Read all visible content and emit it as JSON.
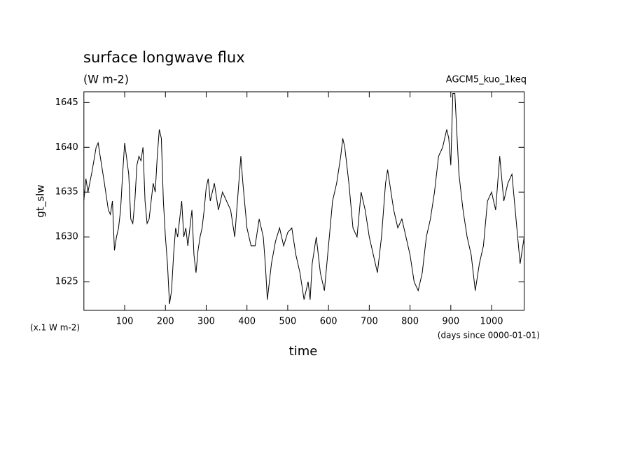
{
  "chart_data": {
    "type": "line",
    "title": "surface longwave flux",
    "subtitle": "(W m-2)",
    "annotation": "AGCM5_kuo_1keq",
    "y_label": "gt_slw",
    "y_unit": "(x.1 W m-2)",
    "x_unit": "(days since 0000-01-01)",
    "x_label": "time",
    "color": "#000000",
    "xlim": [
      0,
      1080
    ],
    "ylim": [
      1621.8,
      1646.2
    ],
    "xticks": [
      100,
      200,
      300,
      400,
      500,
      600,
      700,
      800,
      900,
      1000
    ],
    "yticks": [
      1625,
      1630,
      1635,
      1640,
      1645
    ],
    "x": [
      0,
      5,
      10,
      20,
      30,
      35,
      40,
      50,
      60,
      65,
      70,
      75,
      80,
      85,
      90,
      95,
      100,
      110,
      115,
      120,
      125,
      130,
      135,
      140,
      145,
      150,
      155,
      160,
      165,
      170,
      175,
      180,
      185,
      190,
      195,
      200,
      205,
      210,
      215,
      220,
      225,
      230,
      235,
      240,
      245,
      250,
      255,
      260,
      265,
      270,
      275,
      280,
      285,
      290,
      295,
      300,
      305,
      310,
      320,
      330,
      340,
      350,
      360,
      370,
      380,
      385,
      390,
      400,
      410,
      420,
      430,
      440,
      445,
      450,
      460,
      470,
      480,
      490,
      500,
      510,
      520,
      530,
      540,
      550,
      555,
      560,
      570,
      580,
      590,
      600,
      610,
      620,
      630,
      635,
      640,
      650,
      660,
      670,
      680,
      690,
      700,
      710,
      720,
      730,
      740,
      745,
      750,
      760,
      770,
      780,
      790,
      800,
      810,
      820,
      830,
      840,
      850,
      860,
      870,
      880,
      890,
      895,
      900,
      905,
      910,
      920,
      930,
      940,
      950,
      960,
      970,
      980,
      990,
      1000,
      1010,
      1020,
      1030,
      1040,
      1050,
      1060,
      1070,
      1080
    ],
    "values": [
      1634.1,
      1636.5,
      1635,
      1637.3,
      1640,
      1640.5,
      1639,
      1636.1,
      1633,
      1632.5,
      1634,
      1628.5,
      1630,
      1631,
      1633,
      1637,
      1640.5,
      1637,
      1632,
      1631.5,
      1634,
      1638,
      1639,
      1638.5,
      1640,
      1634,
      1631.5,
      1632,
      1634,
      1636,
      1635,
      1639,
      1642,
      1641,
      1634,
      1630,
      1627,
      1622.5,
      1624,
      1628,
      1631,
      1630,
      1632,
      1634,
      1630,
      1631,
      1629,
      1631,
      1633,
      1628,
      1626,
      1628.5,
      1630,
      1631,
      1633,
      1635.5,
      1636.5,
      1634,
      1636,
      1633,
      1635,
      1634,
      1633,
      1630,
      1636,
      1639,
      1636,
      1631,
      1629,
      1629,
      1632,
      1630,
      1627,
      1623,
      1627,
      1629.5,
      1631,
      1629,
      1630.5,
      1631,
      1628,
      1626,
      1623,
      1625,
      1623,
      1627,
      1630,
      1626,
      1624,
      1629,
      1634,
      1636,
      1639,
      1641,
      1640,
      1636,
      1631,
      1630,
      1635,
      1633,
      1630,
      1628,
      1626,
      1630,
      1636,
      1637.5,
      1636,
      1633,
      1631,
      1632,
      1630,
      1628,
      1625,
      1624,
      1626,
      1630,
      1632,
      1635,
      1639,
      1640,
      1642,
      1641,
      1638,
      1646,
      1646,
      1637,
      1633,
      1630,
      1628,
      1624,
      1627,
      1629,
      1634,
      1635,
      1633,
      1639,
      1634,
      1636,
      1637,
      1632,
      1627,
      1630
    ]
  }
}
